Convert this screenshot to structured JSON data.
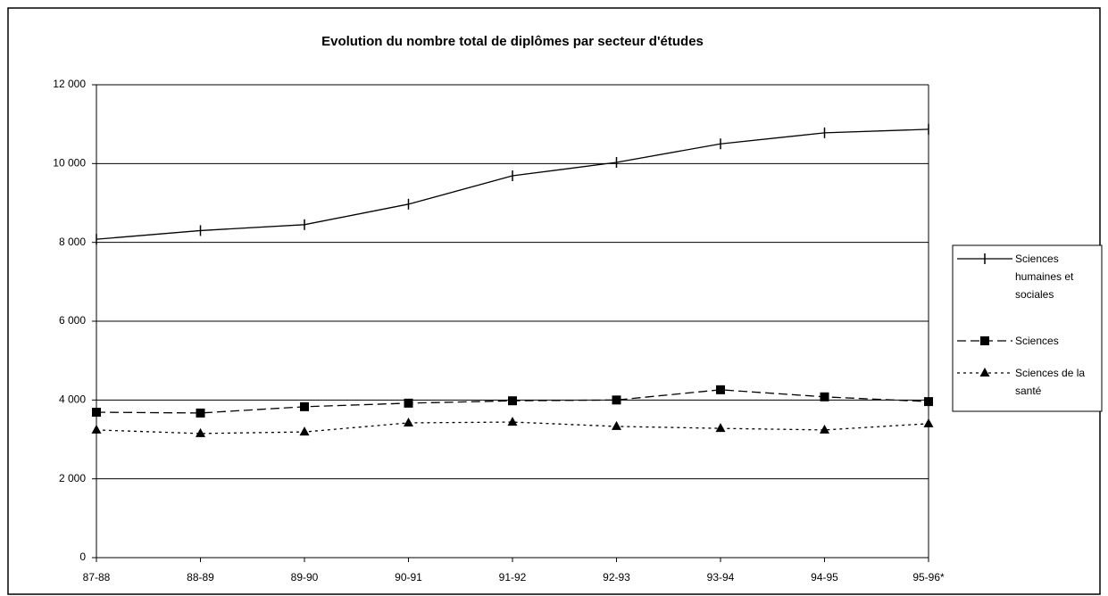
{
  "chart_data": {
    "type": "line",
    "title": "Evolution du nombre total de diplômes par secteur d'études",
    "categories": [
      "87-88",
      "88-89",
      "89-90",
      "90-91",
      "91-92",
      "92-93",
      "93-94",
      "94-95",
      "95-96*"
    ],
    "series": [
      {
        "name": "Sciences humaines et sociales",
        "color": "#000000",
        "dash": "solid",
        "marker": "tick",
        "values": [
          8080,
          8300,
          8450,
          8970,
          9690,
          10030,
          10500,
          10780,
          10870
        ]
      },
      {
        "name": "Sciences",
        "color": "#000000",
        "dash": "dashed",
        "marker": "square",
        "values": [
          3690,
          3670,
          3830,
          3920,
          3980,
          4000,
          4260,
          4080,
          3960
        ]
      },
      {
        "name": "Sciences de la santé",
        "color": "#000000",
        "dash": "dotted",
        "marker": "triangle",
        "values": [
          3240,
          3150,
          3190,
          3420,
          3440,
          3330,
          3280,
          3240,
          3400
        ]
      }
    ],
    "ylim": [
      0,
      12000
    ],
    "yticks": [
      0,
      {
        "value": 2000,
        "label": "2 000"
      },
      {
        "value": 4000,
        "label": "4 000"
      },
      {
        "value": 6000,
        "label": "6 000"
      },
      {
        "value": 8000,
        "label": "8 000"
      },
      {
        "value": 10000,
        "label": "10 000"
      },
      {
        "value": 12000,
        "label": "12 000"
      }
    ],
    "grid": true,
    "legend": "right"
  }
}
